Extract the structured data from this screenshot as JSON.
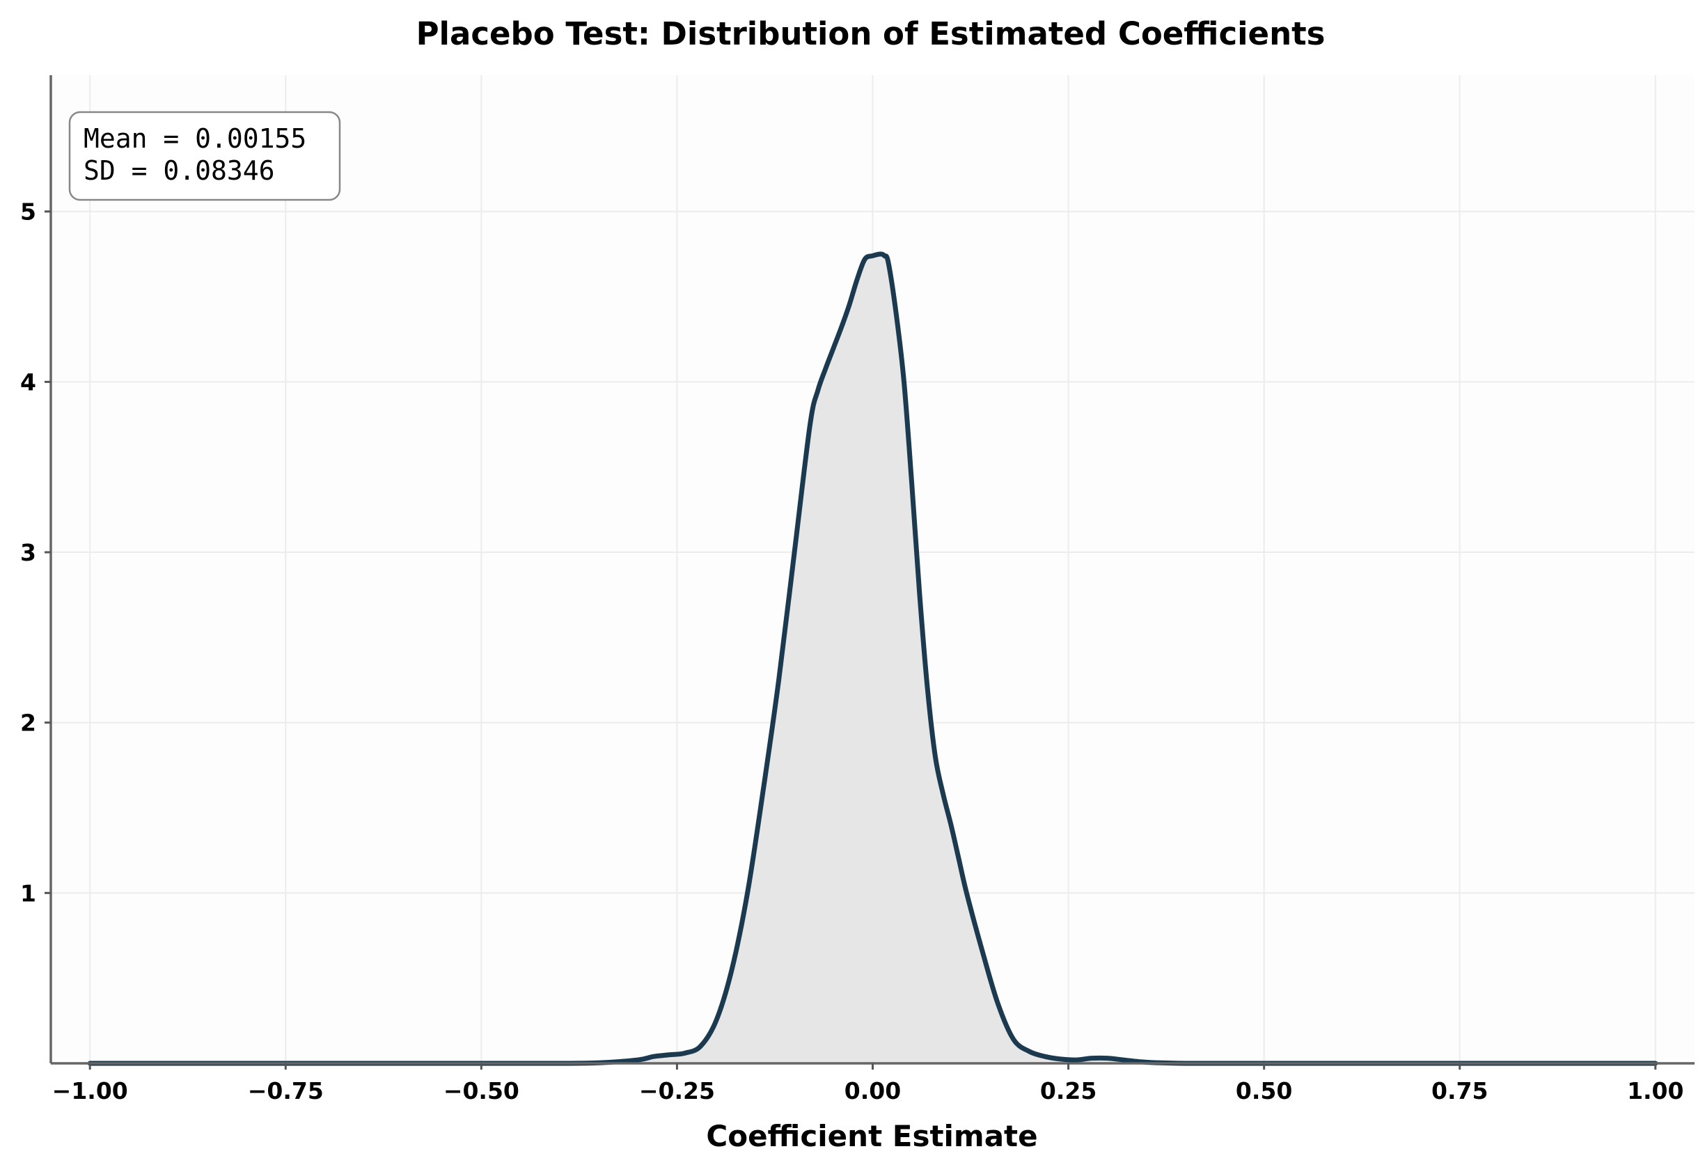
{
  "chart_data": {
    "type": "area",
    "title": "Placebo Test: Distribution of Estimated Coefficients",
    "xlabel": "Coefficient Estimate",
    "ylabel": "",
    "xlim": [
      -1.05,
      1.05
    ],
    "ylim": [
      0,
      5.8
    ],
    "x_ticks": [
      -1.0,
      -0.75,
      -0.5,
      -0.25,
      0.0,
      0.25,
      0.5,
      0.75,
      1.0
    ],
    "x_tick_labels": [
      "−1.00",
      "−0.75",
      "−0.50",
      "−0.25",
      "0.00",
      "0.25",
      "0.50",
      "0.75",
      "1.00"
    ],
    "y_ticks": [
      1,
      2,
      3,
      4,
      5
    ],
    "y_tick_labels": [
      "1",
      "2",
      "3",
      "4",
      "5"
    ],
    "grid": true,
    "annotation": {
      "placement": "top-left",
      "lines": [
        "Mean = 0.00155",
        "SD = 0.08346"
      ]
    },
    "series": [
      {
        "color": "#1c3a4f",
        "fill_color": "#e6e6e6",
        "x": [
          -1.0,
          -0.5,
          -0.4,
          -0.35,
          -0.3,
          -0.28,
          -0.26,
          -0.24,
          -0.22,
          -0.2,
          -0.18,
          -0.16,
          -0.14,
          -0.12,
          -0.1,
          -0.08,
          -0.07,
          -0.06,
          -0.05,
          -0.04,
          -0.03,
          -0.02,
          -0.01,
          0.0,
          0.01,
          0.015,
          0.02,
          0.03,
          0.04,
          0.05,
          0.06,
          0.07,
          0.08,
          0.09,
          0.1,
          0.11,
          0.12,
          0.14,
          0.16,
          0.18,
          0.2,
          0.22,
          0.24,
          0.26,
          0.28,
          0.3,
          0.32,
          0.34,
          0.36,
          0.4,
          0.5,
          1.0
        ],
        "y": [
          0.0,
          0.0,
          0.0,
          0.003,
          0.02,
          0.04,
          0.05,
          0.06,
          0.1,
          0.25,
          0.55,
          1.0,
          1.6,
          2.25,
          3.0,
          3.75,
          3.95,
          4.08,
          4.2,
          4.32,
          4.45,
          4.6,
          4.72,
          4.74,
          4.75,
          4.74,
          4.7,
          4.4,
          4.0,
          3.4,
          2.75,
          2.2,
          1.8,
          1.58,
          1.4,
          1.2,
          1.0,
          0.66,
          0.35,
          0.14,
          0.07,
          0.04,
          0.025,
          0.02,
          0.03,
          0.03,
          0.02,
          0.01,
          0.004,
          0.0,
          0.0,
          0.0
        ]
      }
    ]
  }
}
